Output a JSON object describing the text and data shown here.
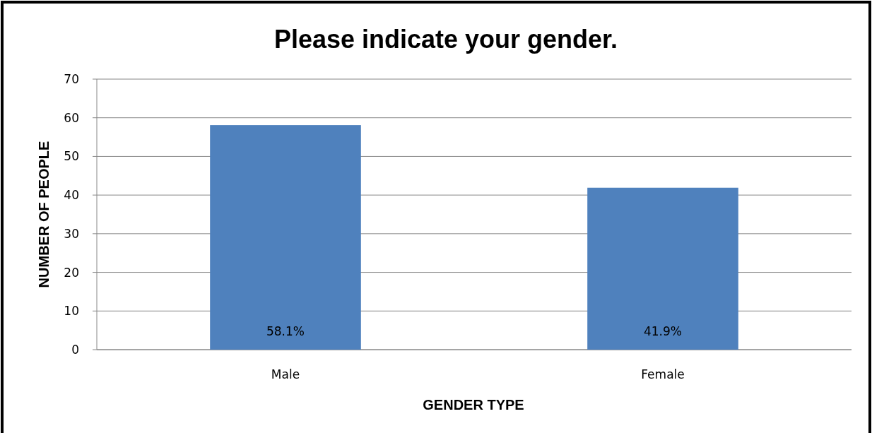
{
  "chart_data": {
    "type": "bar",
    "title": "Please indicate your gender.",
    "xlabel": "GENDER TYPE",
    "ylabel": "NUMBER OF PEOPLE",
    "categories": [
      "Male",
      "Female"
    ],
    "values": [
      58.1,
      41.9
    ],
    "value_labels": [
      "58.1%",
      "41.9%"
    ],
    "color": "#4f81bd",
    "ylim": [
      0,
      70
    ],
    "yticks": [
      0,
      10,
      20,
      30,
      40,
      50,
      60,
      70
    ],
    "grid": "y"
  }
}
